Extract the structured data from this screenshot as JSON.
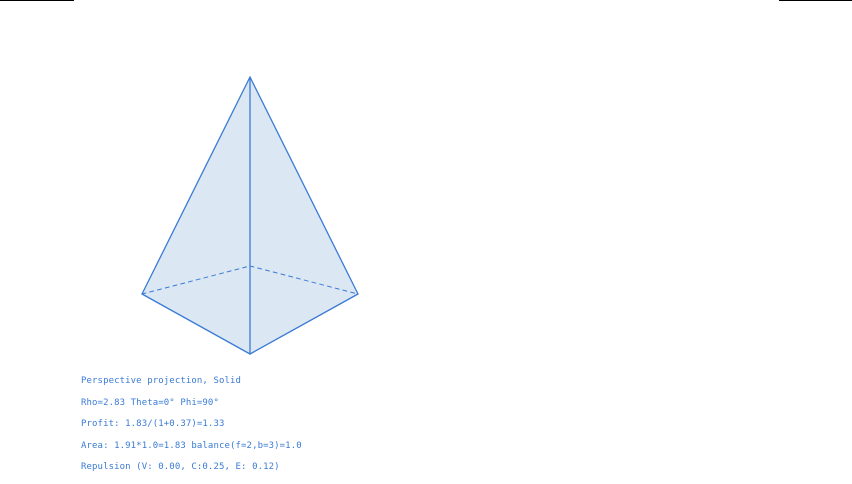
{
  "colors": {
    "edge": "#3a7bd5",
    "face_fill": "#dce7f4",
    "text": "#3a7bd5",
    "rule": "#000000"
  },
  "model": {
    "shape": "pyramid",
    "faces_visible": 3
  },
  "info": {
    "projection": "Perspective projection, Solid",
    "camera": "Rho=2.83 Theta=0° Phi=90°",
    "profit": "Profit: 1.83/(1+0.37)=1.33",
    "area": "Area: 1.91*1.0=1.83 balance(f=2,b=3)=1.0",
    "repulsion": "Repulsion (V: 0.00, C:0.25, E: 0.12)"
  }
}
